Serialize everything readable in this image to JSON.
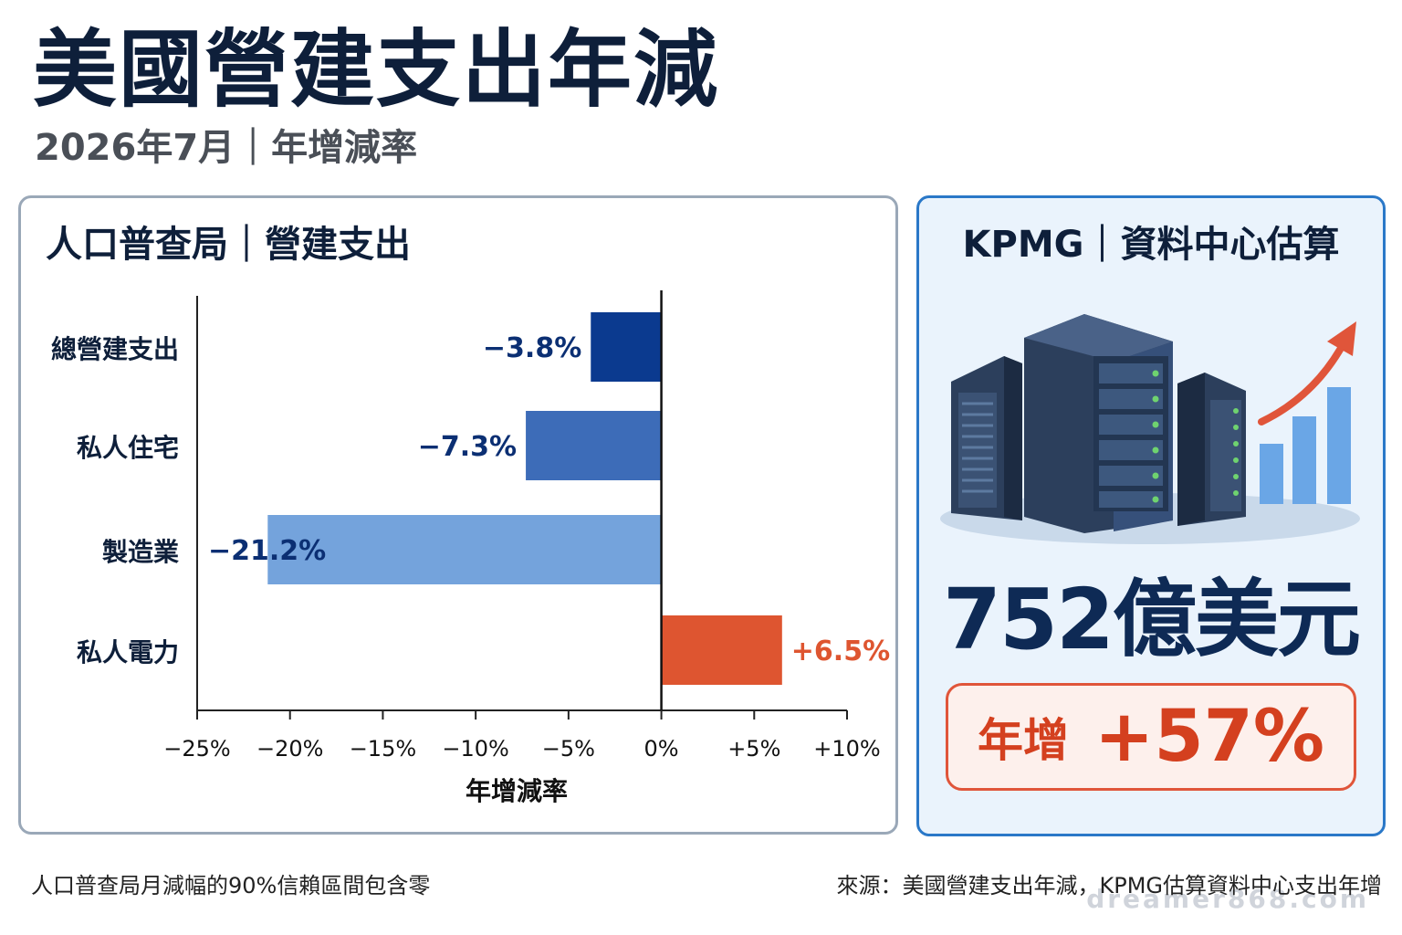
{
  "header": {
    "title": "美國營建支出年減",
    "subtitle": "2026年7月｜年增減率"
  },
  "left_panel": {
    "title": "人口普查局｜營建支出"
  },
  "chart_data": {
    "type": "bar",
    "orientation": "horizontal",
    "categories": [
      "總營建支出",
      "私人住宅",
      "製造業",
      "私人電力"
    ],
    "values": [
      -3.8,
      -7.3,
      -21.2,
      6.5
    ],
    "value_labels": [
      "−3.8%",
      "−7.3%",
      "−21.2%",
      "+6.5%"
    ],
    "xlabel": "年增減率",
    "xlim": [
      -25,
      10
    ],
    "xticks": [
      -25,
      -20,
      -15,
      -10,
      -5,
      0,
      5,
      10
    ],
    "xtick_labels": [
      "−25%",
      "−20%",
      "−15%",
      "−10%",
      "−5%",
      "0%",
      "+5%",
      "+10%"
    ],
    "bar_colors": [
      "#0b3a8f",
      "#3d6cb8",
      "#74a3dc",
      "#de5530"
    ],
    "label_colors": [
      "#0b2f73",
      "#0b2f73",
      "#0b2f73",
      "#de5530"
    ],
    "grid": false
  },
  "right_panel": {
    "title": "KPMG｜資料中心估算",
    "illustration_icon": "server-growth-icon",
    "value": "752億美元",
    "growth_label": "年增",
    "growth_value": "+57%",
    "accent_color": "#e0553a"
  },
  "footer": {
    "note": "人口普查局月減幅的90%信賴區間包含零",
    "source": "來源：美國營建支出年減，KPMG估算資料中心支出年增",
    "watermark": "dreamer868.com"
  }
}
